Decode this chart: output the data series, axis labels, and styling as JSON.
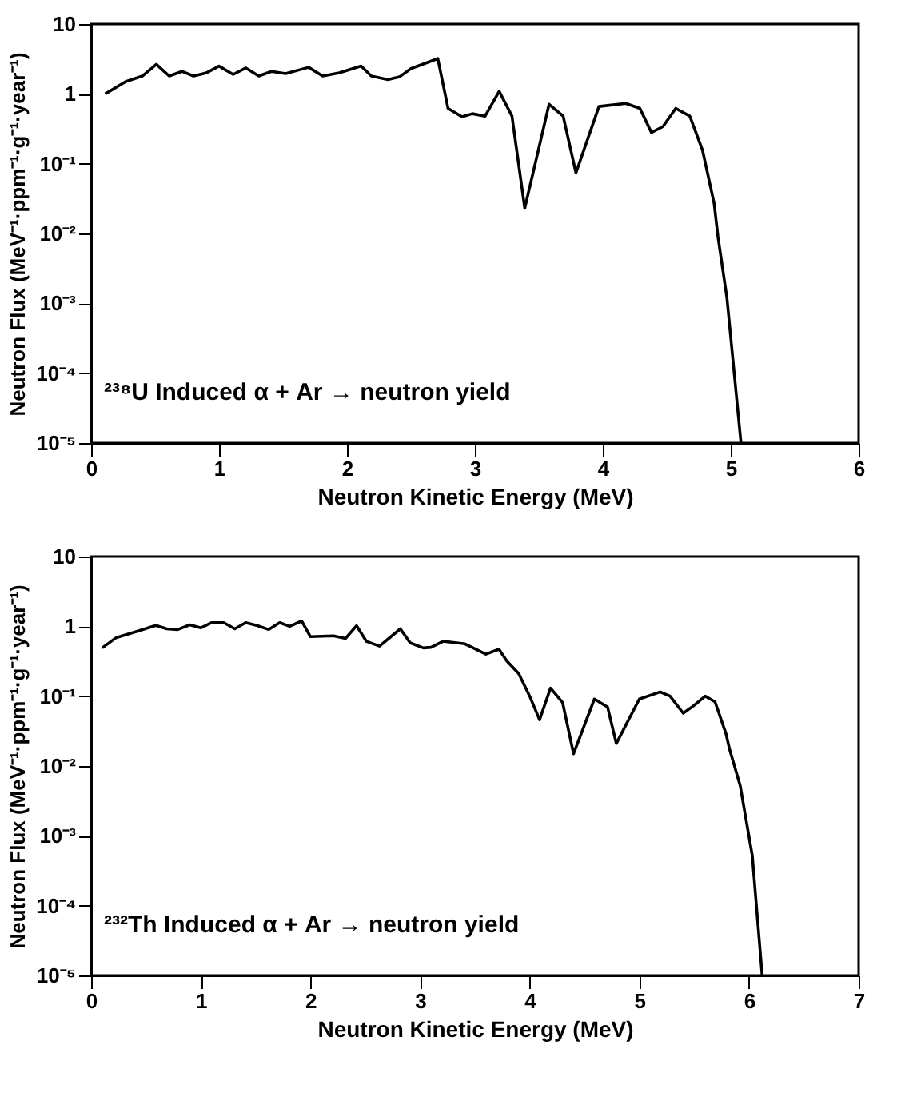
{
  "chart_data": [
    {
      "type": "line",
      "xlabel": "Neutron Kinetic Energy (MeV)",
      "ylabel": "Neutron Flux (MeV⁻¹·ppm⁻¹·g⁻¹·year⁻¹)",
      "log": "y",
      "grid": false,
      "marker": "none",
      "line_style": "solid",
      "annotations": [
        "²³⁸U Induced α + Ar → neutron yield"
      ],
      "xlim": [
        0,
        6
      ],
      "xticks": [
        0,
        1,
        2,
        3,
        4,
        5,
        6
      ],
      "ylim": [
        1e-05,
        10
      ],
      "yticks": [
        {
          "value": 1e-05,
          "label": "10⁻⁵"
        },
        {
          "value": 0.0001,
          "label": "10⁻⁴"
        },
        {
          "value": 0.001,
          "label": "10⁻³"
        },
        {
          "value": 0.01,
          "label": "10⁻²"
        },
        {
          "value": 0.1,
          "label": "10⁻¹"
        },
        1,
        10
      ],
      "series": [
        {
          "color": "#000000",
          "x": [
            0.11,
            0.27,
            0.4,
            0.51,
            0.61,
            0.71,
            0.8,
            0.9,
            1.0,
            1.11,
            1.21,
            1.31,
            1.41,
            1.52,
            1.7,
            1.81,
            1.94,
            2.11,
            2.19,
            2.32,
            2.41,
            2.5,
            2.71,
            2.79,
            2.9,
            2.98,
            3.08,
            3.19,
            3.29,
            3.39,
            3.58,
            3.69,
            3.79,
            3.97,
            4.18,
            4.29,
            4.38,
            4.47,
            4.57,
            4.68,
            4.78,
            4.87,
            4.9,
            4.97,
            5.08
          ],
          "values": [
            1.0,
            1.5,
            1.8,
            2.65,
            1.8,
            2.1,
            1.8,
            2.0,
            2.5,
            1.9,
            2.35,
            1.8,
            2.1,
            1.95,
            2.4,
            1.8,
            2.0,
            2.5,
            1.8,
            1.6,
            1.75,
            2.3,
            3.2,
            0.62,
            0.47,
            0.52,
            0.48,
            1.09,
            0.48,
            0.023,
            0.71,
            0.48,
            0.074,
            0.66,
            0.73,
            0.62,
            0.28,
            0.34,
            0.62,
            0.48,
            0.155,
            0.027,
            0.009,
            0.0012,
            1e-05
          ]
        }
      ]
    },
    {
      "type": "line",
      "xlabel": "Neutron Kinetic Energy (MeV)",
      "ylabel": "Neutron Flux (MeV⁻¹·ppm⁻¹·g⁻¹·year⁻¹)",
      "log": "y",
      "grid": false,
      "marker": "none",
      "line_style": "solid",
      "annotations": [
        "²³²Th Induced α + Ar → neutron yield"
      ],
      "xlim": [
        0,
        7
      ],
      "xticks": [
        0,
        1,
        2,
        3,
        4,
        5,
        6,
        7
      ],
      "ylim": [
        1e-05,
        10
      ],
      "yticks": [
        {
          "value": 1e-05,
          "label": "10⁻⁵"
        },
        {
          "value": 0.0001,
          "label": "10⁻⁴"
        },
        {
          "value": 0.001,
          "label": "10⁻³"
        },
        {
          "value": 0.01,
          "label": "10⁻²"
        },
        {
          "value": 0.1,
          "label": "10⁻¹"
        },
        1,
        10
      ],
      "series": [
        {
          "color": "#000000",
          "x": [
            0.1,
            0.23,
            0.41,
            0.59,
            0.69,
            0.79,
            0.9,
            1.0,
            1.1,
            1.21,
            1.31,
            1.41,
            1.51,
            1.62,
            1.72,
            1.81,
            1.92,
            2.0,
            2.21,
            2.32,
            2.42,
            2.51,
            2.63,
            2.82,
            2.91,
            3.03,
            3.1,
            3.21,
            3.41,
            3.6,
            3.72,
            3.79,
            3.9,
            4.0,
            4.09,
            4.19,
            4.3,
            4.4,
            4.59,
            4.71,
            4.79,
            5.0,
            5.19,
            5.28,
            5.4,
            5.5,
            5.6,
            5.69,
            5.79,
            5.82,
            5.92,
            6.03,
            6.12
          ],
          "values": [
            0.49,
            0.69,
            0.84,
            1.03,
            0.92,
            0.9,
            1.05,
            0.95,
            1.13,
            1.13,
            0.92,
            1.13,
            1.03,
            0.9,
            1.13,
            1.0,
            1.19,
            0.71,
            0.73,
            0.67,
            1.02,
            0.61,
            0.52,
            0.92,
            0.58,
            0.49,
            0.5,
            0.61,
            0.56,
            0.4,
            0.47,
            0.32,
            0.21,
            0.1,
            0.046,
            0.13,
            0.081,
            0.015,
            0.091,
            0.07,
            0.021,
            0.091,
            0.115,
            0.1,
            0.057,
            0.074,
            0.1,
            0.083,
            0.029,
            0.018,
            0.0052,
            0.00052,
            1e-05
          ]
        }
      ]
    }
  ]
}
